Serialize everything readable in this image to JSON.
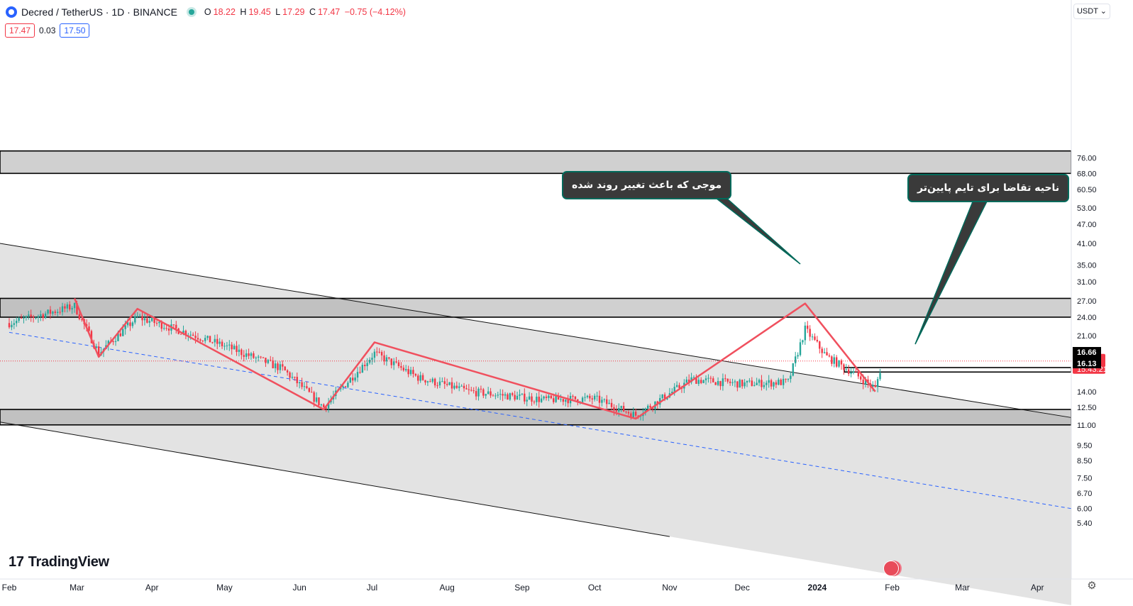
{
  "header": {
    "symbol": "Decred / TetherUS · 1D · BINANCE",
    "o_label": "O",
    "o_value": "18.22",
    "h_label": "H",
    "h_value": "19.45",
    "l_label": "L",
    "l_value": "17.29",
    "c_label": "C",
    "c_value": "17.47",
    "change": "−0.75 (−4.12%)"
  },
  "trade": {
    "sell": "17.47",
    "spread": "0.03",
    "buy": "17.50"
  },
  "currency_button": "USDT",
  "watermark": "TradingView",
  "annotations": {
    "wave_note": "موجی که باعث تغییر روند شده",
    "demand_note": "ناحیه تقاضا برای تایم پایین‌تر"
  },
  "price_labels": {
    "last": "17.47",
    "countdown": "15:43:21",
    "zone_top": "16.66",
    "zone_bottom": "16.13"
  },
  "colors": {
    "up": "#26a69a",
    "down": "#f23645",
    "pattern": "#f0505e",
    "dashed": "#2962ff",
    "callout_bg": "#3a3a3a",
    "callout_border": "#006a5b"
  },
  "chart_data": {
    "type": "candlestick",
    "scale": "log",
    "ylim": [
      4.9,
      88
    ],
    "y_ticks": [
      "76.00",
      "68.00",
      "60.50",
      "53.00",
      "47.00",
      "41.00",
      "35.00",
      "31.00",
      "27.00",
      "24.00",
      "21.00",
      "18.00",
      "14.00",
      "12.50",
      "11.00",
      "9.50",
      "8.50",
      "7.50",
      "6.70",
      "6.00",
      "5.40"
    ],
    "x_ticks": [
      "Feb",
      "Mar",
      "Apr",
      "May",
      "Jun",
      "Jul",
      "Aug",
      "Sep",
      "Oct",
      "Nov",
      "Dec",
      "2024",
      "Feb",
      "Mar",
      "Apr"
    ],
    "zones": [
      {
        "low": 68.0,
        "high": 80.0
      },
      {
        "low": 24.0,
        "high": 27.5
      },
      {
        "low": 11.0,
        "high": 12.3
      },
      {
        "low": 16.13,
        "high": 16.66
      }
    ],
    "channel": [
      {
        "from": [
          "2023-02-01",
          40.5
        ],
        "to": [
          "2024-04-15",
          11.6
        ]
      },
      {
        "from": [
          "2023-02-01",
          11.1
        ],
        "to": [
          "2023-11-01",
          4.9
        ]
      }
    ],
    "dashed_trendline": {
      "from": [
        "2023-02-01",
        21.5
      ],
      "to": [
        "2024-04-15",
        6.0
      ]
    },
    "zigzag": [
      [
        "2023-02-28",
        27.5
      ],
      [
        "2023-03-10",
        18.0
      ],
      [
        "2023-03-26",
        25.5
      ],
      [
        "2023-06-11",
        12.3
      ],
      [
        "2023-07-02",
        20.0
      ],
      [
        "2023-10-18",
        11.5
      ],
      [
        "2023-12-27",
        26.5
      ],
      [
        "2024-01-25",
        14.0
      ]
    ],
    "last_price": 17.47,
    "anchors": [
      [
        "2023-02-01",
        23.0
      ],
      [
        "2023-02-28",
        26.0
      ],
      [
        "2023-03-10",
        18.5
      ],
      [
        "2023-03-26",
        24.0
      ],
      [
        "2023-04-15",
        21.5
      ],
      [
        "2023-05-01",
        19.5
      ],
      [
        "2023-05-25",
        16.5
      ],
      [
        "2023-06-11",
        12.5
      ],
      [
        "2023-07-02",
        18.5
      ],
      [
        "2023-07-20",
        15.5
      ],
      [
        "2023-08-10",
        14.0
      ],
      [
        "2023-09-10",
        13.2
      ],
      [
        "2023-10-01",
        13.3
      ],
      [
        "2023-10-18",
        11.8
      ],
      [
        "2023-11-10",
        15.3
      ],
      [
        "2023-12-01",
        14.8
      ],
      [
        "2023-12-20",
        15.0
      ],
      [
        "2023-12-27",
        22.0
      ],
      [
        "2024-01-05",
        18.0
      ],
      [
        "2024-01-15",
        16.2
      ],
      [
        "2024-01-25",
        14.3
      ],
      [
        "2024-01-28",
        17.5
      ]
    ]
  }
}
